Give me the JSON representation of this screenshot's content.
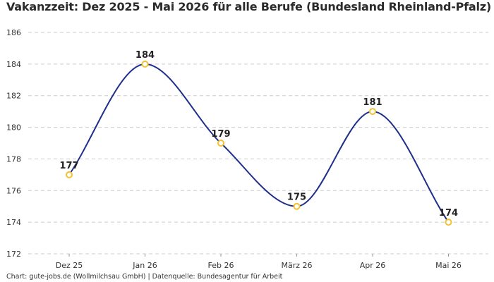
{
  "title": "Vakanzzeit: Dez 2025 - Mai 2026 für alle Berufe (Bundesland Rheinland-Pfalz)",
  "footer": "Chart: gute-jobs.de (Wollmilchsau GmbH) | Datenquelle: Bundesagentur für Arbeit",
  "colors": {
    "line": "#1f2f8c",
    "marker": "#f2c230",
    "grid": "#cccccc"
  },
  "chart_data": {
    "type": "line",
    "title": "Vakanzzeit: Dez 2025 - Mai 2026 für alle Berufe (Bundesland Rheinland-Pfalz)",
    "xlabel": "",
    "ylabel": "",
    "categories": [
      "Dez 25",
      "Jan 26",
      "Feb 26",
      "März 26",
      "Apr 26",
      "Mai 26"
    ],
    "values": [
      177,
      184,
      179,
      175,
      181,
      174
    ],
    "data_labels": [
      "177",
      "184",
      "179",
      "175",
      "181",
      "174"
    ],
    "ylim": [
      172,
      186
    ],
    "yticks": [
      "172",
      "174",
      "176",
      "178",
      "180",
      "182",
      "184",
      "186"
    ],
    "grid": "horizontal dashed",
    "smooth": true
  }
}
